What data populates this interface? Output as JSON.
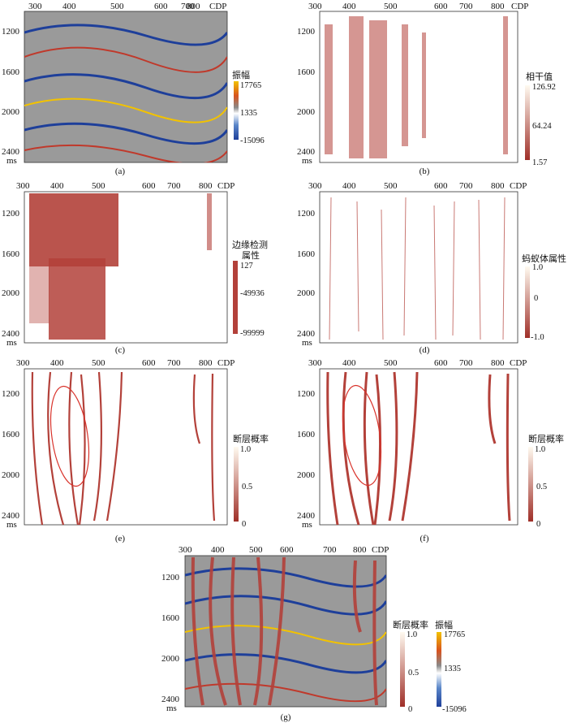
{
  "figure": {
    "x_ticks": [
      "300",
      "400",
      "500",
      "600",
      "700",
      "800",
      "CDP"
    ],
    "y_ticks": [
      "1200",
      "1600",
      "2000",
      "2400"
    ],
    "y_unit": "ms",
    "panels": [
      {
        "id": "a",
        "caption": "(a)",
        "attribute": "振幅",
        "colorbar": {
          "type": "amplitude",
          "title": "振幅",
          "max": "17765",
          "mid": "1335",
          "min": "-15096"
        }
      },
      {
        "id": "b",
        "caption": "(b)",
        "attribute": "相干值",
        "colorbar": {
          "type": "red",
          "title": "相干值",
          "max": "126.92",
          "mid": "64.24",
          "min": "1.57"
        }
      },
      {
        "id": "c",
        "caption": "(c)",
        "attribute": "边缘检测属性",
        "colorbar": {
          "type": "solid-red",
          "title_line1": "边缘检测",
          "title_line2": "属性",
          "max": "127",
          "mid": "-49936",
          "min": "-99999"
        }
      },
      {
        "id": "d",
        "caption": "(d)",
        "attribute": "蚂蚁体属性",
        "colorbar": {
          "type": "red",
          "title": "蚂蚁体属性",
          "max": "1.0",
          "mid": "0",
          "min": "-1.0"
        }
      },
      {
        "id": "e",
        "caption": "(e)",
        "attribute": "断层概率",
        "colorbar": {
          "type": "red",
          "title": "断层概率",
          "max": "1.0",
          "mid": "0.5",
          "min": "0"
        }
      },
      {
        "id": "f",
        "caption": "(f)",
        "attribute": "断层概率",
        "colorbar": {
          "type": "red",
          "title": "断层概率",
          "max": "1.0",
          "mid": "0.5",
          "min": "0"
        }
      },
      {
        "id": "g",
        "caption": "(g)",
        "attribute": "断层概率 + 振幅",
        "colorbar": {
          "type": "red",
          "title": "断层概率",
          "max": "1.0",
          "mid": "0.5",
          "min": "0"
        },
        "colorbar2": {
          "type": "amplitude",
          "title": "振幅",
          "max": "17765",
          "mid": "1335",
          "min": "-15096"
        }
      }
    ]
  },
  "colors": {
    "fault_red": "#b3413a",
    "amp_red": "#c0392b",
    "amp_blue": "#1e3f9a",
    "amp_yellow": "#f2c200",
    "ellipse": "#d9332b"
  }
}
